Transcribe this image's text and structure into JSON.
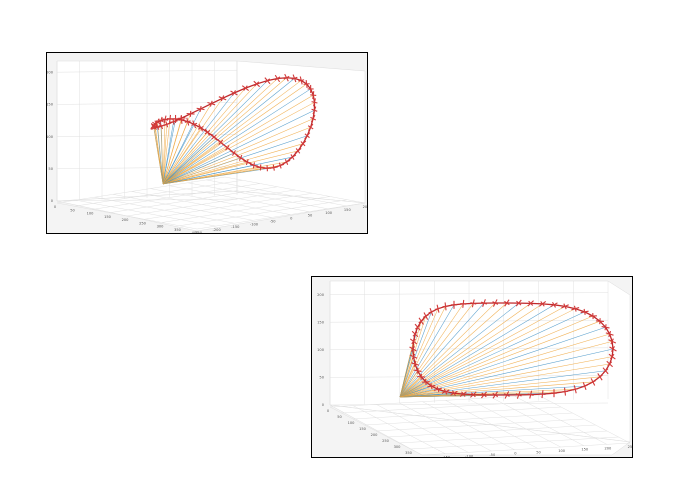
{
  "colors": {
    "blue": "#3d8fc4",
    "orange": "#eea53a",
    "curve": "#c0292b",
    "marker": "#d13a3a",
    "background": "#f4f4f4",
    "grid": "#e0e0e0"
  },
  "chart_data": [
    {
      "type": "3d-line",
      "view": "front-left",
      "grid": true,
      "legend": "none",
      "zlim": [
        0,
        200
      ],
      "z_ticks": [
        "0",
        "50",
        "100",
        "150",
        "200"
      ],
      "x_ticks": [
        "0",
        "50",
        "100",
        "150",
        "200",
        "250",
        "300",
        "350",
        "400"
      ],
      "y_ticks": [
        "-250",
        "-200",
        "-150",
        "-100",
        "-50",
        "0",
        "50",
        "100",
        "150",
        "200"
      ],
      "origin": [
        0,
        0,
        0
      ],
      "curve_points": 54,
      "ray_colors": [
        "blue",
        "orange"
      ]
    },
    {
      "type": "3d-line",
      "view": "side",
      "grid": true,
      "legend": "none",
      "zlim": [
        0,
        200
      ],
      "z_ticks": [
        "0",
        "50",
        "100",
        "150",
        "200"
      ],
      "x_ticks": [
        "0",
        "50",
        "100",
        "150",
        "200",
        "250",
        "300",
        "350",
        "400"
      ],
      "y_ticks": [
        "-200",
        "-150",
        "-100",
        "-50",
        "0",
        "50",
        "100",
        "150",
        "200",
        "250"
      ],
      "origin": [
        0,
        0,
        0
      ],
      "curve_points": 54,
      "ray_colors": [
        "blue",
        "orange"
      ]
    }
  ]
}
